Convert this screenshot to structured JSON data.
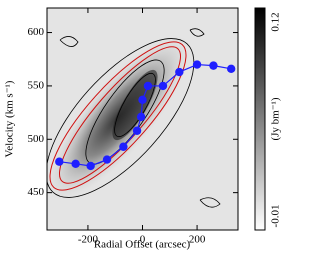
{
  "chart_data": {
    "type": "line",
    "xlabel": "Radial Offset (arcsec)",
    "ylabel": "Velocity (km s⁻¹)",
    "x": [
      -305,
      -245,
      -190,
      -130,
      -70,
      -20,
      -5,
      0,
      20,
      75,
      135,
      200,
      260,
      325
    ],
    "series": [
      {
        "color": "#1f1fff",
        "values": [
          479,
          477,
          475,
          481,
          493,
          508,
          521,
          537,
          550,
          550,
          563,
          570,
          569,
          566
        ]
      }
    ],
    "xlim": [
      -350,
      350
    ],
    "xticks": [
      -200,
      0,
      200
    ],
    "ylim": [
      415,
      623
    ],
    "yticks": [
      450,
      500,
      550,
      600
    ],
    "colorbar": {
      "clim": [
        -0.01,
        0.12
      ],
      "ticks": [
        -0.01,
        0.12
      ],
      "label": "(Jy bm⁻¹)",
      "colors": [
        "#ffffff",
        "#000000"
      ]
    }
  }
}
